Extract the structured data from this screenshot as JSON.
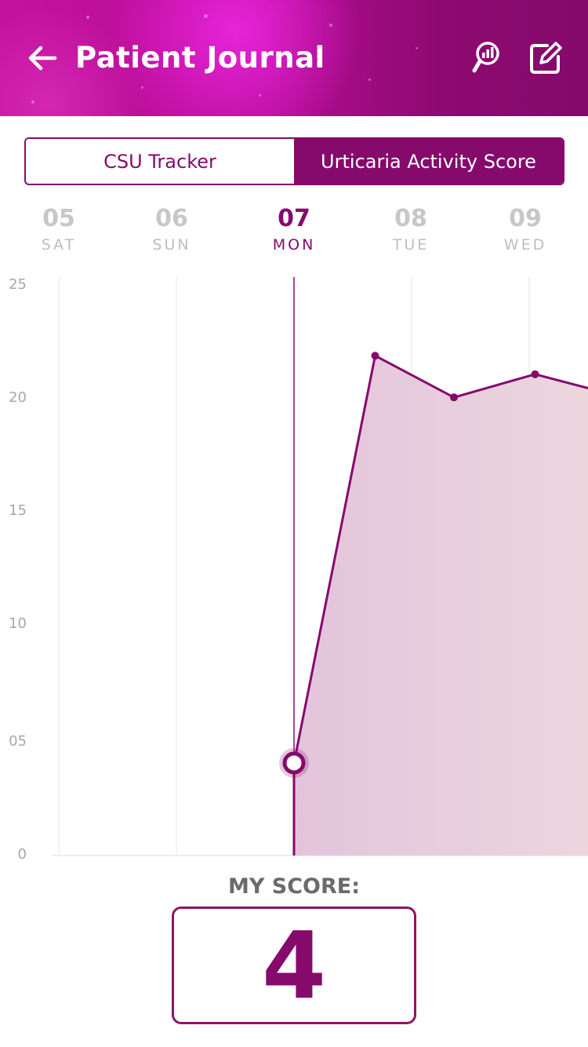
{
  "header": {
    "title": "Patient Journal",
    "back_icon": "arrow-left-icon",
    "report_icon": "chart-search-icon",
    "edit_icon": "edit-icon",
    "color_start": "#c4129e",
    "color_end": "#84096a"
  },
  "tabs": [
    {
      "label": "CSU Tracker",
      "active": false
    },
    {
      "label": "Urticaria Activity Score",
      "active": true
    }
  ],
  "days": [
    {
      "num": "05",
      "name": "SAT",
      "active": false
    },
    {
      "num": "06",
      "name": "SUN",
      "active": false
    },
    {
      "num": "07",
      "name": "MON",
      "active": true
    },
    {
      "num": "08",
      "name": "TUE",
      "active": false
    },
    {
      "num": "09",
      "name": "WED",
      "active": false
    }
  ],
  "chart_data": {
    "type": "area",
    "x": [
      "05",
      "06",
      "07",
      "08",
      "09"
    ],
    "y_tick_labels": [
      "0",
      "05",
      "10",
      "15",
      "20",
      "25"
    ],
    "ylim": [
      0,
      25
    ],
    "points": [
      {
        "x": 2,
        "y": 4
      },
      {
        "x": 2.69,
        "y": 21.6
      },
      {
        "x": 3.36,
        "y": 19.8
      },
      {
        "x": 4.05,
        "y": 20.8
      },
      {
        "x": 4.5,
        "y": 20.2
      }
    ],
    "selected_index": 0,
    "grid": "vertical",
    "color": "#850a6c",
    "fill_color": "#e3c1d8"
  },
  "score": {
    "label": "MY SCORE:",
    "value": "4"
  }
}
